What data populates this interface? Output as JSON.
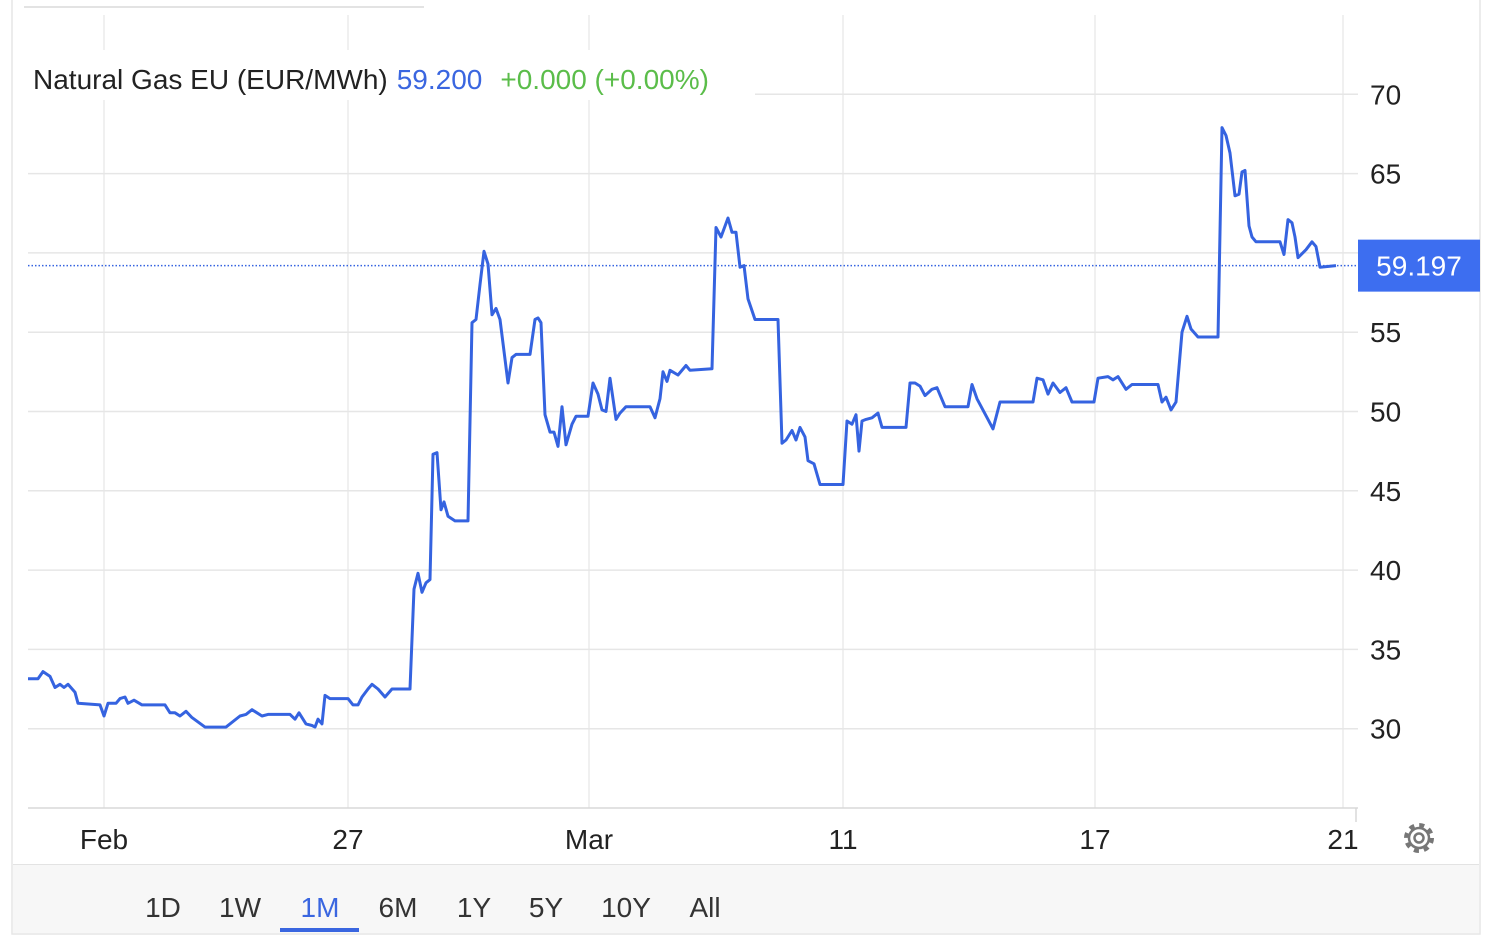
{
  "chart_data": {
    "type": "line",
    "title": "Natural Gas EU (EUR/MWh)",
    "price": "59.200",
    "change": "+0.000 (+0.00%)",
    "color": "#3563e0",
    "price_color": "#3a66e0",
    "change_color": "#5bbd4a",
    "current_value": 59.197,
    "grid": true,
    "xlim": [
      0,
      1330
    ],
    "xticks": [
      {
        "value": 76,
        "label": "Feb"
      },
      {
        "value": 320,
        "label": "27"
      },
      {
        "value": 561,
        "label": "Mar"
      },
      {
        "value": 815,
        "label": "11"
      },
      {
        "value": 1067,
        "label": "17"
      },
      {
        "value": 1315,
        "label": "21"
      }
    ],
    "ylim": [
      25,
      75
    ],
    "yticks": [
      30,
      35,
      40,
      45,
      50,
      55,
      60,
      65,
      70
    ],
    "x": [
      0,
      10,
      15,
      22,
      27,
      32,
      36,
      40,
      47,
      50,
      72,
      76,
      80,
      88,
      92,
      97,
      100,
      106,
      114,
      137,
      142,
      147,
      152,
      158,
      164,
      177,
      198,
      212,
      218,
      224,
      234,
      240,
      262,
      267,
      271,
      278,
      284,
      287,
      290,
      294,
      297,
      302,
      320,
      325,
      330,
      334,
      340,
      344,
      350,
      357,
      364,
      382,
      386,
      390,
      394,
      398,
      402,
      405,
      409,
      413,
      416,
      420,
      427,
      440,
      444,
      448,
      452,
      456,
      460,
      464,
      468,
      472,
      476,
      480,
      484,
      488,
      502,
      507,
      510,
      513,
      517,
      522,
      526,
      530,
      534,
      538,
      544,
      548,
      560,
      565,
      570,
      574,
      578,
      582,
      588,
      592,
      598,
      622,
      627,
      632,
      635,
      639,
      642,
      650,
      658,
      662,
      684,
      688,
      693,
      700,
      704,
      708,
      712,
      716,
      720,
      727,
      750,
      754,
      758,
      764,
      768,
      772,
      777,
      780,
      786,
      792,
      815,
      819,
      824,
      828,
      831,
      834,
      838,
      844,
      850,
      854,
      858,
      878,
      882,
      887,
      892,
      897,
      904,
      909,
      917,
      940,
      944,
      949,
      960,
      965,
      972,
      977,
      1005,
      1009,
      1015,
      1020,
      1025,
      1032,
      1038,
      1044,
      1066,
      1070,
      1080,
      1085,
      1090,
      1098,
      1104,
      1130,
      1134,
      1138,
      1143,
      1148,
      1154,
      1159,
      1163,
      1170,
      1190,
      1194,
      1198,
      1202,
      1207,
      1211,
      1214,
      1217,
      1221,
      1224,
      1228,
      1232,
      1252,
      1256,
      1260,
      1264,
      1267,
      1270,
      1278,
      1284,
      1288,
      1292,
      1308
    ],
    "values": [
      33.15,
      33.15,
      33.6,
      33.3,
      32.6,
      32.8,
      32.6,
      32.8,
      32.3,
      31.6,
      31.5,
      30.8,
      31.6,
      31.6,
      31.9,
      32.0,
      31.6,
      31.8,
      31.5,
      31.5,
      31.0,
      31.0,
      30.8,
      31.1,
      30.7,
      30.1,
      30.1,
      30.8,
      30.9,
      31.2,
      30.8,
      30.9,
      30.9,
      30.6,
      31.0,
      30.3,
      30.2,
      30.1,
      30.6,
      30.3,
      32.1,
      31.9,
      31.9,
      31.5,
      31.5,
      32.0,
      32.5,
      32.8,
      32.5,
      32.0,
      32.5,
      32.5,
      38.8,
      39.8,
      38.6,
      39.2,
      39.4,
      47.3,
      47.4,
      43.8,
      44.3,
      43.4,
      43.1,
      43.1,
      55.6,
      55.8,
      58.0,
      60.1,
      59.3,
      56.1,
      56.5,
      55.8,
      53.8,
      51.8,
      53.4,
      53.6,
      53.6,
      55.8,
      55.9,
      55.6,
      49.8,
      48.7,
      48.7,
      47.8,
      50.3,
      47.9,
      49.2,
      49.7,
      49.7,
      51.8,
      51.1,
      50.1,
      50.0,
      52.1,
      49.5,
      49.9,
      50.3,
      50.3,
      49.6,
      50.8,
      52.5,
      51.9,
      52.6,
      52.3,
      52.9,
      52.6,
      52.7,
      61.6,
      61.0,
      62.2,
      61.3,
      61.3,
      59.1,
      59.2,
      57.1,
      55.8,
      55.8,
      48.0,
      48.2,
      48.8,
      48.2,
      49.0,
      48.4,
      46.9,
      46.7,
      45.4,
      45.4,
      49.4,
      49.2,
      49.8,
      47.5,
      49.4,
      49.5,
      49.6,
      49.9,
      49.0,
      49.0,
      49.0,
      51.8,
      51.8,
      51.6,
      51.0,
      51.4,
      51.5,
      50.3,
      50.3,
      51.7,
      50.8,
      49.5,
      48.9,
      50.6,
      50.6,
      50.6,
      52.1,
      52.0,
      51.1,
      51.8,
      51.2,
      51.5,
      50.6,
      50.6,
      52.1,
      52.2,
      52.0,
      52.2,
      51.4,
      51.7,
      51.7,
      50.6,
      50.9,
      50.1,
      50.6,
      55.0,
      56.0,
      55.2,
      54.7,
      54.7,
      67.9,
      67.4,
      66.3,
      63.6,
      63.7,
      65.1,
      65.2,
      61.7,
      61.0,
      60.7,
      60.7,
      60.7,
      59.9,
      62.1,
      61.9,
      61.0,
      59.7,
      60.2,
      60.7,
      60.4,
      59.1,
      59.2
    ],
    "ranges": [
      "1D",
      "1W",
      "1M",
      "6M",
      "1Y",
      "5Y",
      "10Y",
      "All"
    ],
    "active_range": "1M"
  }
}
